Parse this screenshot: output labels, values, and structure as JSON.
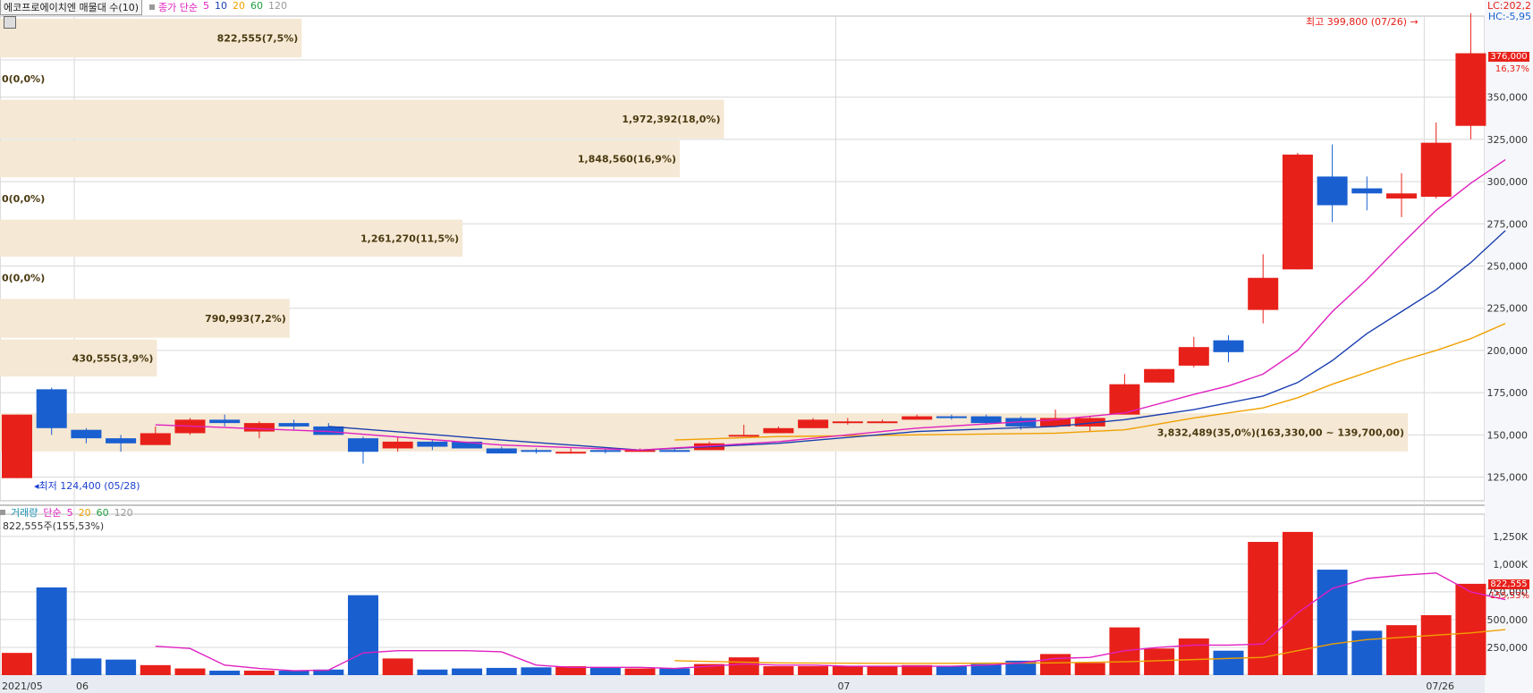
{
  "header": {
    "title": "에코프로에이치엔 매물대 수(10)",
    "price_ind_label": "종가 단순",
    "ma_periods": [
      "5",
      "10",
      "20",
      "60",
      "120"
    ],
    "ma_colors": [
      "#e020c0",
      "#1a3fb0",
      "#f0a000",
      "#20a040",
      "#999999"
    ]
  },
  "right_top": {
    "lc": "LC:202,2",
    "hc": "HC:-5,95"
  },
  "last_price": {
    "value": "376,000",
    "pct": "16,37%"
  },
  "annotations": {
    "high": "최고 399,800 (07/26) →",
    "low": "◂최저 124,400 (05/28)"
  },
  "volume_header": {
    "label": "거래량",
    "ind_label": "단순",
    "periods": [
      "5",
      "20",
      "60",
      "120"
    ],
    "current": "822,555주(155,53%)"
  },
  "last_volume": {
    "value": "822,555",
    "pct": "155,53%"
  },
  "chart_data": {
    "type": "candlestick",
    "title": "에코프로에이치엔 매물대 수(10)",
    "price_axis": {
      "ticks": [
        125000,
        150000,
        175000,
        200000,
        225000,
        250000,
        275000,
        300000,
        325000,
        350000
      ],
      "tick_labels": [
        "125,000",
        "150,000",
        "175,000",
        "200,000",
        "225,000",
        "250,000",
        "275,000",
        "300,000",
        "325,000",
        "350,000"
      ],
      "range": [
        111000,
        398000
      ]
    },
    "volume_axis": {
      "ticks": [
        250000,
        500000,
        750000,
        1000000,
        1250000
      ],
      "tick_labels": [
        "250,000",
        "500,000",
        "750,000",
        "1,000K",
        "1,250K"
      ],
      "range": [
        0,
        1450000
      ]
    },
    "x_labels": [
      {
        "label": "2021/05",
        "index": 0
      },
      {
        "label": "06",
        "index": 2
      },
      {
        "label": "07",
        "index": 24
      },
      {
        "label": "07/26",
        "index": 41
      }
    ],
    "candles": [
      {
        "o": 124400,
        "h": 162000,
        "l": 124400,
        "c": 162000,
        "v": 200000
      },
      {
        "o": 177000,
        "h": 178000,
        "l": 150000,
        "c": 154000,
        "v": 790000
      },
      {
        "o": 153000,
        "h": 154000,
        "l": 145000,
        "c": 148000,
        "v": 150000
      },
      {
        "o": 148000,
        "h": 150000,
        "l": 140000,
        "c": 145000,
        "v": 140000
      },
      {
        "o": 144000,
        "h": 155000,
        "l": 144000,
        "c": 151000,
        "v": 90000
      },
      {
        "o": 151000,
        "h": 160000,
        "l": 150000,
        "c": 159000,
        "v": 60000
      },
      {
        "o": 159000,
        "h": 162000,
        "l": 155000,
        "c": 157000,
        "v": 40000
      },
      {
        "o": 152000,
        "h": 158000,
        "l": 148000,
        "c": 157000,
        "v": 40000
      },
      {
        "o": 157000,
        "h": 159000,
        "l": 153000,
        "c": 155000,
        "v": 40000
      },
      {
        "o": 155000,
        "h": 157000,
        "l": 150000,
        "c": 150000,
        "v": 50000
      },
      {
        "o": 148000,
        "h": 149000,
        "l": 133000,
        "c": 140000,
        "v": 720000
      },
      {
        "o": 142000,
        "h": 149000,
        "l": 140000,
        "c": 146000,
        "v": 150000
      },
      {
        "o": 146000,
        "h": 147000,
        "l": 141000,
        "c": 143000,
        "v": 50000
      },
      {
        "o": 146000,
        "h": 146000,
        "l": 142000,
        "c": 142000,
        "v": 60000
      },
      {
        "o": 142000,
        "h": 143000,
        "l": 139000,
        "c": 139000,
        "v": 65000
      },
      {
        "o": 141000,
        "h": 142000,
        "l": 139000,
        "c": 140000,
        "v": 70000
      },
      {
        "o": 140000,
        "h": 142000,
        "l": 139000,
        "c": 140000,
        "v": 80000
      },
      {
        "o": 141000,
        "h": 142000,
        "l": 139000,
        "c": 140000,
        "v": 70000
      },
      {
        "o": 141000,
        "h": 142000,
        "l": 140000,
        "c": 141000,
        "v": 60000
      },
      {
        "o": 141000,
        "h": 142000,
        "l": 140000,
        "c": 140000,
        "v": 60000
      },
      {
        "o": 141000,
        "h": 146000,
        "l": 141000,
        "c": 145000,
        "v": 100000
      },
      {
        "o": 150000,
        "h": 156000,
        "l": 149000,
        "c": 150000,
        "v": 160000
      },
      {
        "o": 151000,
        "h": 155000,
        "l": 151000,
        "c": 154000,
        "v": 80000
      },
      {
        "o": 154000,
        "h": 160000,
        "l": 154000,
        "c": 159000,
        "v": 80000
      },
      {
        "o": 157000,
        "h": 160000,
        "l": 156000,
        "c": 158000,
        "v": 80000
      },
      {
        "o": 158000,
        "h": 159000,
        "l": 157000,
        "c": 158000,
        "v": 80000
      },
      {
        "o": 159000,
        "h": 162000,
        "l": 159000,
        "c": 161000,
        "v": 90000
      },
      {
        "o": 161000,
        "h": 162000,
        "l": 159000,
        "c": 160000,
        "v": 80000
      },
      {
        "o": 161000,
        "h": 162000,
        "l": 156000,
        "c": 157000,
        "v": 100000
      },
      {
        "o": 160000,
        "h": 161000,
        "l": 153000,
        "c": 155000,
        "v": 130000
      },
      {
        "o": 155000,
        "h": 165000,
        "l": 155000,
        "c": 160000,
        "v": 190000
      },
      {
        "o": 155000,
        "h": 161000,
        "l": 152000,
        "c": 160000,
        "v": 110000
      },
      {
        "o": 162000,
        "h": 186000,
        "l": 162000,
        "c": 180000,
        "v": 430000
      },
      {
        "o": 181000,
        "h": 189000,
        "l": 181000,
        "c": 189000,
        "v": 240000
      },
      {
        "o": 191000,
        "h": 208000,
        "l": 190000,
        "c": 202000,
        "v": 330000
      },
      {
        "o": 206000,
        "h": 209000,
        "l": 193000,
        "c": 199000,
        "v": 220000
      },
      {
        "o": 224000,
        "h": 257000,
        "l": 216000,
        "c": 243000,
        "v": 1200000
      },
      {
        "o": 248000,
        "h": 317000,
        "l": 248000,
        "c": 316000,
        "v": 1290000
      },
      {
        "o": 303000,
        "h": 322000,
        "l": 276000,
        "c": 286000,
        "v": 950000
      },
      {
        "o": 296000,
        "h": 303000,
        "l": 283000,
        "c": 293000,
        "v": 400000
      },
      {
        "o": 290000,
        "h": 305000,
        "l": 279000,
        "c": 293000,
        "v": 450000
      },
      {
        "o": 291000,
        "h": 335000,
        "l": 290000,
        "c": 323000,
        "v": 540000
      },
      {
        "o": 333000,
        "h": 399800,
        "l": 325000,
        "c": 376000,
        "v": 822555
      }
    ],
    "ma5": [
      [
        4,
        156000
      ],
      [
        9,
        152000
      ],
      [
        14,
        144000
      ],
      [
        18,
        141000
      ],
      [
        22,
        146000
      ],
      [
        26,
        154000
      ],
      [
        30,
        159000
      ],
      [
        32,
        163000
      ],
      [
        34,
        174000
      ],
      [
        35,
        179000
      ],
      [
        36,
        186000
      ],
      [
        37,
        200000
      ],
      [
        38,
        223000
      ],
      [
        39,
        242000
      ],
      [
        40,
        263000
      ],
      [
        41,
        283000
      ],
      [
        42,
        299000
      ],
      [
        43,
        313000
      ]
    ],
    "ma10": [
      [
        9,
        155000
      ],
      [
        14,
        147000
      ],
      [
        18,
        141000
      ],
      [
        22,
        145000
      ],
      [
        26,
        152000
      ],
      [
        30,
        155000
      ],
      [
        32,
        159000
      ],
      [
        34,
        165000
      ],
      [
        36,
        173000
      ],
      [
        37,
        181000
      ],
      [
        38,
        194000
      ],
      [
        39,
        210000
      ],
      [
        40,
        223000
      ],
      [
        41,
        236000
      ],
      [
        42,
        252000
      ],
      [
        43,
        271000
      ]
    ],
    "ma20": [
      [
        19,
        147000
      ],
      [
        22,
        149000
      ],
      [
        26,
        150000
      ],
      [
        30,
        151000
      ],
      [
        31,
        152000
      ],
      [
        32,
        153000
      ],
      [
        34,
        160000
      ],
      [
        36,
        166000
      ],
      [
        37,
        172000
      ],
      [
        38,
        180000
      ],
      [
        39,
        187000
      ],
      [
        40,
        194000
      ],
      [
        41,
        200000
      ],
      [
        42,
        207000
      ],
      [
        43,
        216000
      ]
    ],
    "vol_ma5": [
      [
        4,
        260000
      ],
      [
        5,
        240000
      ],
      [
        6,
        90000
      ],
      [
        7,
        60000
      ],
      [
        8,
        40000
      ],
      [
        9,
        45000
      ],
      [
        10,
        200000
      ],
      [
        11,
        220000
      ],
      [
        12,
        220000
      ],
      [
        13,
        220000
      ],
      [
        14,
        210000
      ],
      [
        15,
        90000
      ],
      [
        16,
        70000
      ],
      [
        17,
        70000
      ],
      [
        18,
        70000
      ],
      [
        19,
        60000
      ],
      [
        20,
        80000
      ],
      [
        21,
        100000
      ],
      [
        22,
        90000
      ],
      [
        23,
        90000
      ],
      [
        24,
        80000
      ],
      [
        25,
        80000
      ],
      [
        26,
        80000
      ],
      [
        27,
        80000
      ],
      [
        28,
        90000
      ],
      [
        29,
        110000
      ],
      [
        30,
        150000
      ],
      [
        31,
        160000
      ],
      [
        32,
        220000
      ],
      [
        33,
        250000
      ],
      [
        34,
        270000
      ],
      [
        35,
        270000
      ],
      [
        36,
        280000
      ],
      [
        37,
        560000
      ],
      [
        38,
        780000
      ],
      [
        39,
        870000
      ],
      [
        40,
        900000
      ],
      [
        41,
        920000
      ],
      [
        42,
        750000
      ],
      [
        43,
        680000
      ]
    ],
    "vol_ma20": [
      [
        19,
        130000
      ],
      [
        22,
        110000
      ],
      [
        26,
        105000
      ],
      [
        30,
        110000
      ],
      [
        32,
        120000
      ],
      [
        34,
        140000
      ],
      [
        36,
        160000
      ],
      [
        37,
        220000
      ],
      [
        38,
        280000
      ],
      [
        39,
        320000
      ],
      [
        40,
        340000
      ],
      [
        41,
        360000
      ],
      [
        42,
        380000
      ],
      [
        43,
        410000
      ]
    ],
    "profile": [
      {
        "label": "822,555(7,5%)",
        "pct": 7.5,
        "lo": 373000,
        "hi": 397000
      },
      {
        "label": "0(0,0%)",
        "pct": 0,
        "lo": 349000,
        "hi": 373000
      },
      {
        "label": "1,972,392(18,0%)",
        "pct": 18.0,
        "lo": 325000,
        "hi": 349000
      },
      {
        "label": "1,848,560(16,9%)",
        "pct": 16.9,
        "lo": 302000,
        "hi": 325000
      },
      {
        "label": "0(0,0%)",
        "pct": 0,
        "lo": 278000,
        "hi": 302000
      },
      {
        "label": "1,261,270(11,5%)",
        "pct": 11.5,
        "lo": 255000,
        "hi": 278000
      },
      {
        "label": "0(0,0%)",
        "pct": 0,
        "lo": 231000,
        "hi": 255000
      },
      {
        "label": "790,993(7,2%)",
        "pct": 7.2,
        "lo": 207000,
        "hi": 231000
      },
      {
        "label": "430,555(3,9%)",
        "pct": 3.9,
        "lo": 184000,
        "hi": 207000
      },
      {
        "label": "3,832,489(35,0%)(163,330,00 ~ 139,700,00)",
        "pct": 35.0,
        "lo": 139700,
        "hi": 163330
      }
    ],
    "colors": {
      "up": "#e8201a",
      "down": "#1a5fd0",
      "profile_fill": "#f5e8d4",
      "profile_text": "#4a3a10"
    }
  }
}
